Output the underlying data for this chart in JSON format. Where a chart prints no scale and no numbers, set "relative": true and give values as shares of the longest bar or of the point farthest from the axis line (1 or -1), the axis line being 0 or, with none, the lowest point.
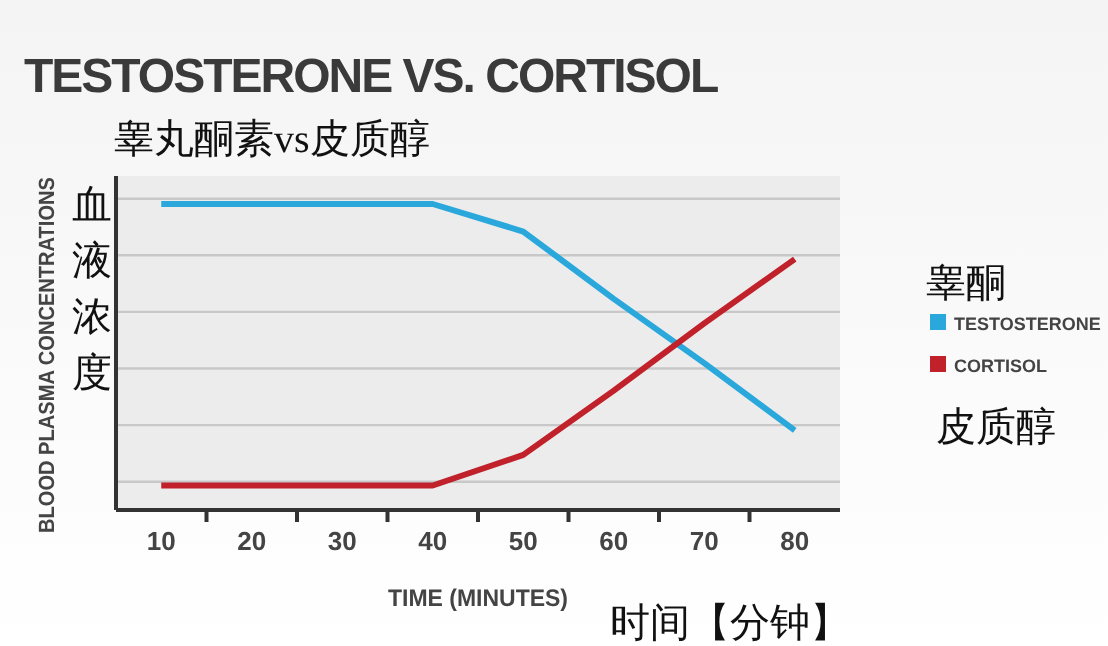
{
  "chart_data": {
    "type": "line",
    "title": "TESTOSTERONE VS. CORTISOL",
    "subtitle": "睾丸酮素vs皮质醇",
    "xlabel": "TIME (MINUTES)",
    "ylabel": "BLOOD PLASMA CONCENTRATIONS",
    "annotations": [
      "血液浓度",
      "时间【分钟】",
      "睾酮",
      "皮质醇"
    ],
    "x": [
      10,
      20,
      30,
      40,
      50,
      60,
      70,
      80
    ],
    "series": [
      {
        "name": "TESTOSTERONE",
        "color": "#2aa8dc",
        "values": [
          1,
          1,
          1,
          1,
          0.91,
          0.69,
          0.48,
          0.26
        ]
      },
      {
        "name": "CORTISOL",
        "color": "#c0212b",
        "values": [
          0.08,
          0.08,
          0.08,
          0.08,
          0.18,
          0.39,
          0.61,
          0.82
        ]
      }
    ],
    "relative": true,
    "xlim": [
      5,
      85
    ],
    "xticks": [
      10,
      {
        "value": 15,
        "label": null
      },
      20,
      {
        "value": 25,
        "label": null
      },
      30,
      {
        "value": 35,
        "label": null
      },
      40,
      {
        "value": 45,
        "label": null
      },
      50,
      {
        "value": 55,
        "label": null
      },
      60,
      {
        "value": 65,
        "label": null
      },
      70,
      {
        "value": 75,
        "label": null
      },
      80
    ],
    "grid": true,
    "legend": "right",
    "marker": "none",
    "line_style": "solid"
  }
}
